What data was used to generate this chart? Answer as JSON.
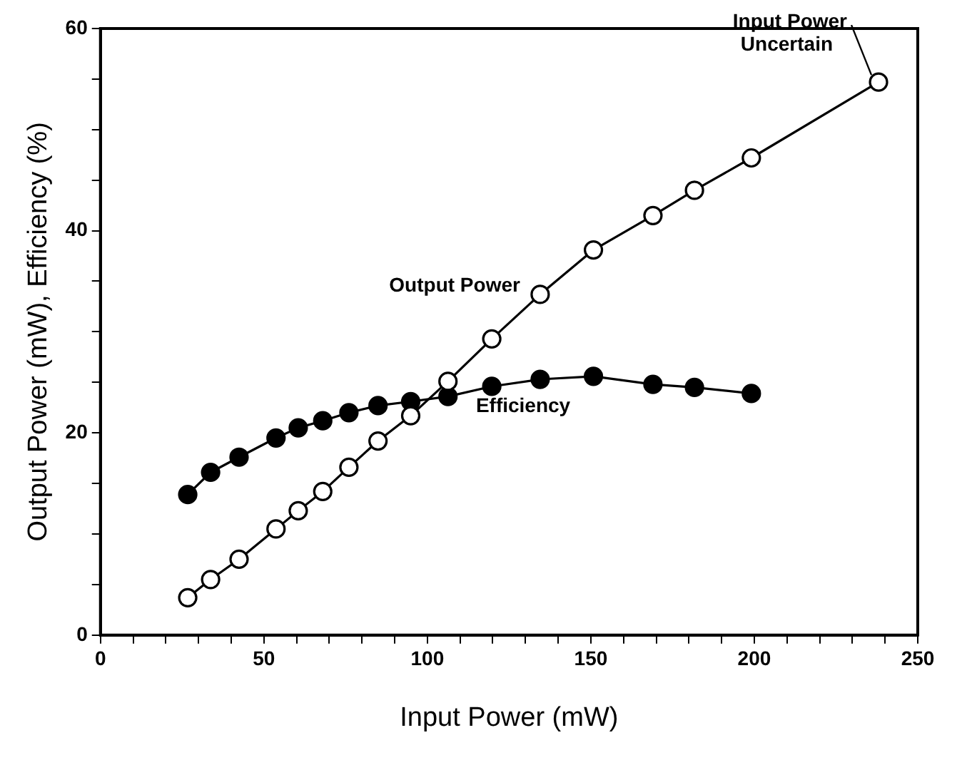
{
  "chart_data": {
    "type": "line",
    "xlabel": "Input Power (mW)",
    "ylabel": "Output Power (mW), Efficiency (%)",
    "xlim": [
      0,
      250
    ],
    "ylim": [
      0,
      60
    ],
    "xticks": [
      0,
      {
        "value": 10,
        "label": null
      },
      {
        "value": 20,
        "label": null
      },
      {
        "value": 30,
        "label": null
      },
      {
        "value": 40,
        "label": null
      },
      50,
      {
        "value": 60,
        "label": null
      },
      {
        "value": 70,
        "label": null
      },
      {
        "value": 80,
        "label": null
      },
      {
        "value": 90,
        "label": null
      },
      100,
      {
        "value": 110,
        "label": null
      },
      {
        "value": 120,
        "label": null
      },
      {
        "value": 130,
        "label": null
      },
      {
        "value": 140,
        "label": null
      },
      150,
      {
        "value": 160,
        "label": null
      },
      {
        "value": 170,
        "label": null
      },
      {
        "value": 180,
        "label": null
      },
      {
        "value": 190,
        "label": null
      },
      200,
      {
        "value": 210,
        "label": null
      },
      {
        "value": 220,
        "label": null
      },
      {
        "value": 230,
        "label": null
      },
      {
        "value": 240,
        "label": null
      },
      250
    ],
    "yticks": [
      0,
      {
        "value": 5,
        "label": null
      },
      {
        "value": 10,
        "label": null
      },
      {
        "value": 15,
        "label": null
      },
      20,
      {
        "value": 25,
        "label": null
      },
      {
        "value": 30,
        "label": null
      },
      {
        "value": 35,
        "label": null
      },
      40,
      {
        "value": 45,
        "label": null
      },
      {
        "value": 50,
        "label": null
      },
      {
        "value": 55,
        "label": null
      },
      60
    ],
    "grid": false,
    "legend": false,
    "line_style": "solid",
    "series": [
      {
        "name": "Output Power",
        "color": "#000000",
        "marker": "circle",
        "x": [
          26.7,
          33.7,
          42.4,
          53.7,
          60.5,
          68.0,
          76.0,
          84.9,
          94.9,
          106.3,
          119.7,
          134.5,
          150.8,
          169.0,
          181.7,
          199.1,
          238
        ],
        "values": [
          3.7,
          5.5,
          7.5,
          10.5,
          12.3,
          14.2,
          16.6,
          19.2,
          21.7,
          25.1,
          29.3,
          33.7,
          38.1,
          41.5,
          44.0,
          47.2,
          54.7
        ]
      },
      {
        "name": "Efficiency",
        "color": "#000000",
        "marker": "circle",
        "x": [
          26.7,
          33.7,
          42.4,
          53.7,
          60.5,
          68.0,
          76.0,
          84.9,
          94.9,
          106.3,
          119.7,
          134.5,
          150.8,
          169.0,
          181.7,
          199.1
        ],
        "values": [
          13.9,
          16.1,
          17.6,
          19.5,
          20.5,
          21.2,
          22.0,
          22.7,
          23.1,
          23.6,
          24.6,
          25.3,
          25.6,
          24.8,
          24.5,
          23.9
        ]
      }
    ],
    "annotations": [
      {
        "text": "Input Power Uncertain",
        "x": 238,
        "y": 54.7
      }
    ]
  }
}
